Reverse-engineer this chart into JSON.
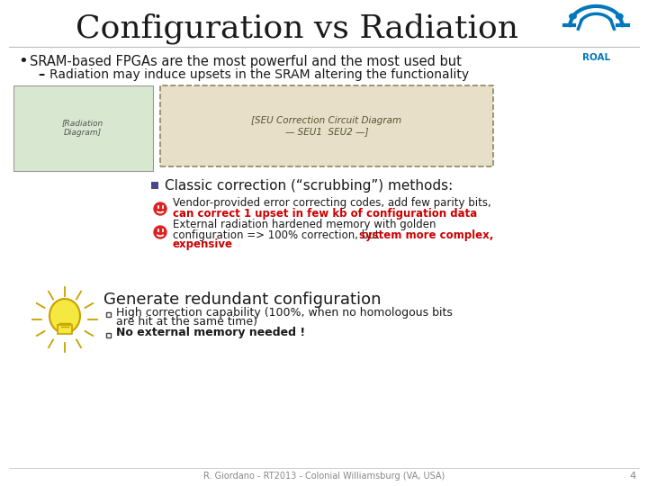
{
  "title": "Configuration vs Radiation",
  "title_fontsize": 26,
  "background_color": "#ffffff",
  "title_color": "#1a1a1a",
  "bullet1": "SRAM-based FPGAs are the most powerful and the most used but",
  "sub_bullet1": "Radiation may induce upsets in the SRAM altering the functionality",
  "section_header": "Classic correction (“scrubbing”) methods:",
  "item1_black": "Vendor-provided error correcting codes, add few parity bits,",
  "item1_red": "can correct 1 upset in few kb of configuration data",
  "item2_black1": "External radiation hardened memory with golden",
  "item2_black2": "configuration => 100% correction, but ",
  "item2_red1": "system more complex,",
  "item2_red2": "expensive",
  "generate_header": "Generate redundant configuration",
  "gen_item1a": "High correction capability (100%, when no homologous bits",
  "gen_item1b": "are hit at the same time)",
  "gen_item2": "No external memory needed !",
  "footer": "R. Giordano - RT2013 - Colonial Williamsburg (VA, USA)",
  "page_num": "4",
  "black": "#1a1a1a",
  "red": "#cc0000",
  "square_color": "#4a4a8a",
  "logo_blue": "#0077bb",
  "sad_red": "#dd2222",
  "bulb_yellow": "#f5e840",
  "bulb_outline": "#c8a000",
  "footer_gray": "#888888",
  "line_gray": "#bbbbbb"
}
